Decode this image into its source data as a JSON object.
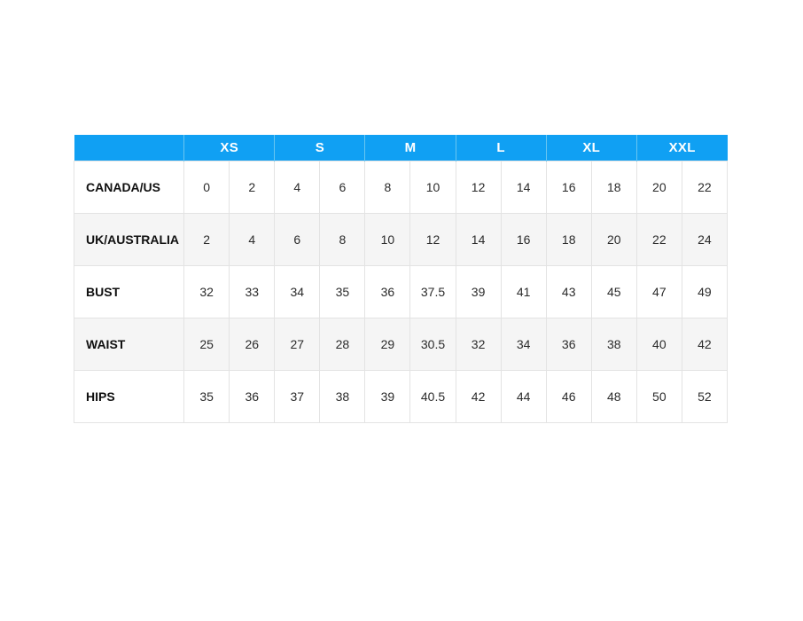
{
  "colors": {
    "header_bg": "#10A0F3",
    "header_divider": "#69C6F1",
    "row_alt_bg": "#f5f5f5",
    "cell_border": "#e3e3e3",
    "label_text": "#101010",
    "value_text": "#2b2b2b",
    "page_bg": "#ffffff"
  },
  "chart_data": {
    "type": "table",
    "title": "",
    "corner_label": "",
    "size_groups": [
      "XS",
      "S",
      "M",
      "L",
      "XL",
      "XXL"
    ],
    "row_headers": [
      "CANADA/US",
      "UK/AUSTRALIA",
      "BUST",
      "WAIST",
      "HIPS"
    ],
    "rows": [
      {
        "label": "CANADA/US",
        "values": [
          "0",
          "2",
          "4",
          "6",
          "8",
          "10",
          "12",
          "14",
          "16",
          "18",
          "20",
          "22"
        ]
      },
      {
        "label": "UK/AUSTRALIA",
        "values": [
          "2",
          "4",
          "6",
          "8",
          "10",
          "12",
          "14",
          "16",
          "18",
          "20",
          "22",
          "24"
        ]
      },
      {
        "label": "BUST",
        "values": [
          "32",
          "33",
          "34",
          "35",
          "36",
          "37.5",
          "39",
          "41",
          "43",
          "45",
          "47",
          "49"
        ]
      },
      {
        "label": "WAIST",
        "values": [
          "25",
          "26",
          "27",
          "28",
          "29",
          "30.5",
          "32",
          "34",
          "36",
          "38",
          "40",
          "42"
        ]
      },
      {
        "label": "HIPS",
        "values": [
          "35",
          "36",
          "37",
          "38",
          "39",
          "40.5",
          "42",
          "44",
          "46",
          "48",
          "50",
          "52"
        ]
      }
    ]
  }
}
